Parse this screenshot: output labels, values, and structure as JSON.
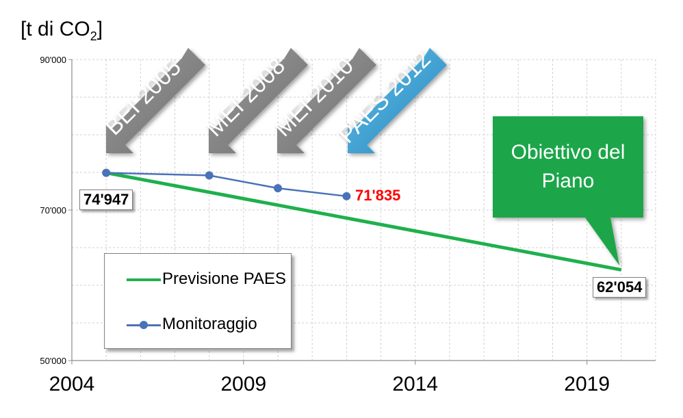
{
  "unit_label": {
    "prefix": "[t di CO",
    "subscript": "2",
    "suffix": "]"
  },
  "milestones": [
    "BEI 2005",
    "MEI 2008",
    "MEI 2010",
    "PAES 2012"
  ],
  "callout": {
    "text_line1": "Obiettivo del",
    "text_line2": "Piano"
  },
  "value_labels": {
    "start": "74'947",
    "last_monitoring": "71'835",
    "target": "62'054"
  },
  "colors": {
    "previsione": "#1fb04c",
    "monitoraggio": "#4a72b8",
    "highlight_value": "#ff0000",
    "milestone_gray": "#8a8a8a",
    "milestone_blue": "#3ba2d4",
    "callout_green": "#18a649"
  },
  "chart_data": {
    "type": "line",
    "y_ticks": [
      "50'000",
      "70'000",
      "90'000"
    ],
    "x_ticks": [
      "2004",
      "2009",
      "2014",
      "2019"
    ],
    "xlim": [
      2004,
      2021
    ],
    "ylim": [
      50000,
      90000
    ],
    "grid": true,
    "legend_position": "bottom-left",
    "series": [
      {
        "name": "Previsione PAES",
        "x": [
          2005,
          2020
        ],
        "y": [
          74947,
          62054
        ]
      },
      {
        "name": "Monitoraggio",
        "x": [
          2005,
          2008,
          2010,
          2012
        ],
        "y": [
          74947,
          74600,
          72900,
          71835
        ]
      }
    ]
  }
}
